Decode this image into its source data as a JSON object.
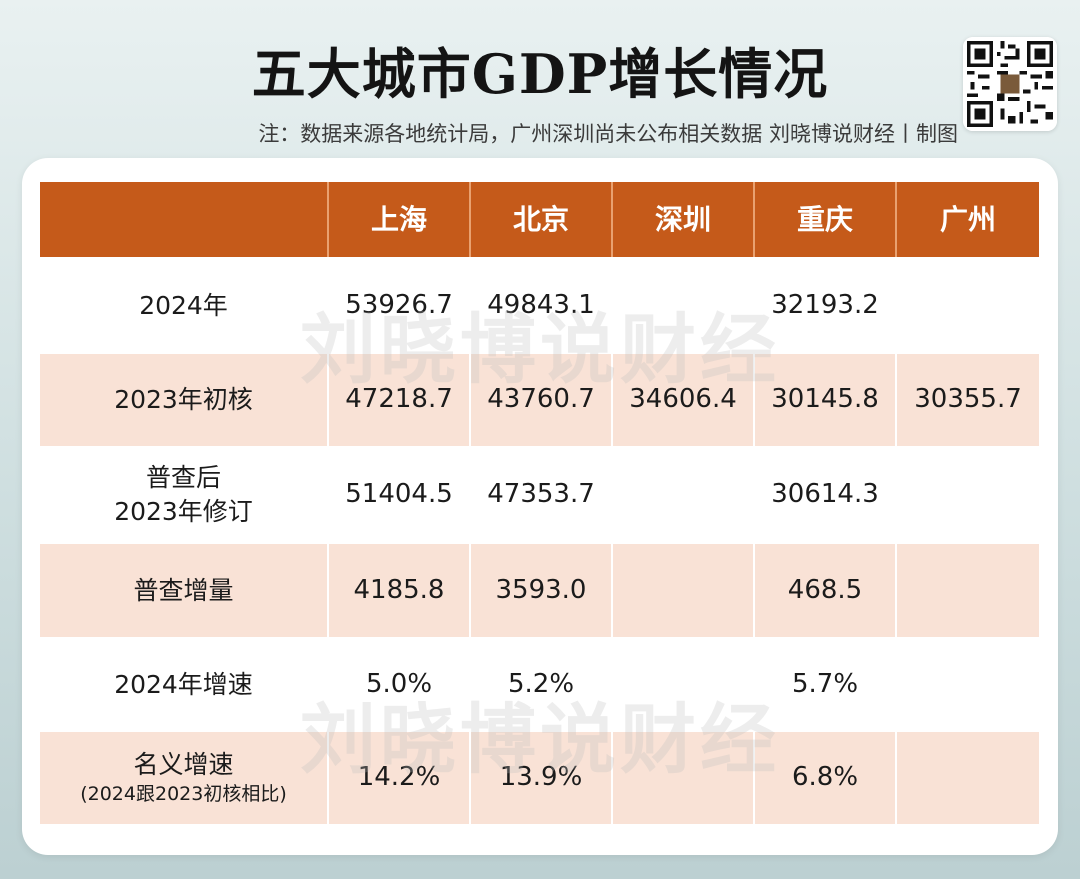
{
  "title": "五大城市GDP增长情况",
  "note": "注：数据来源各地统计局，广州深圳尚未公布相关数据  刘晓博说财经丨制图",
  "watermark": "刘晓博说财经",
  "colors": {
    "header": "#c55a1a",
    "alt_row": "#f9e2d6"
  },
  "table": {
    "columns": [
      "上海",
      "北京",
      "深圳",
      "重庆",
      "广州"
    ],
    "rows": [
      {
        "label": "2024年",
        "values": [
          "53926.7",
          "49843.1",
          "",
          "32193.2",
          ""
        ]
      },
      {
        "label": "2023年初核",
        "values": [
          "47218.7",
          "43760.7",
          "34606.4",
          "30145.8",
          "30355.7"
        ]
      },
      {
        "label_line1": "普查后",
        "label_line2": "2023年修订",
        "values": [
          "51404.5",
          "47353.7",
          "",
          "30614.3",
          ""
        ]
      },
      {
        "label": "普查增量",
        "values": [
          "4185.8",
          "3593.0",
          "",
          "468.5",
          ""
        ]
      },
      {
        "label": "2024年增速",
        "values": [
          "5.0%",
          "5.2%",
          "",
          "5.7%",
          ""
        ]
      },
      {
        "label_line1": "名义增速",
        "label_line2": "(2024跟2023初核相比)",
        "values": [
          "14.2%",
          "13.9%",
          "",
          "6.8%",
          ""
        ]
      }
    ]
  }
}
